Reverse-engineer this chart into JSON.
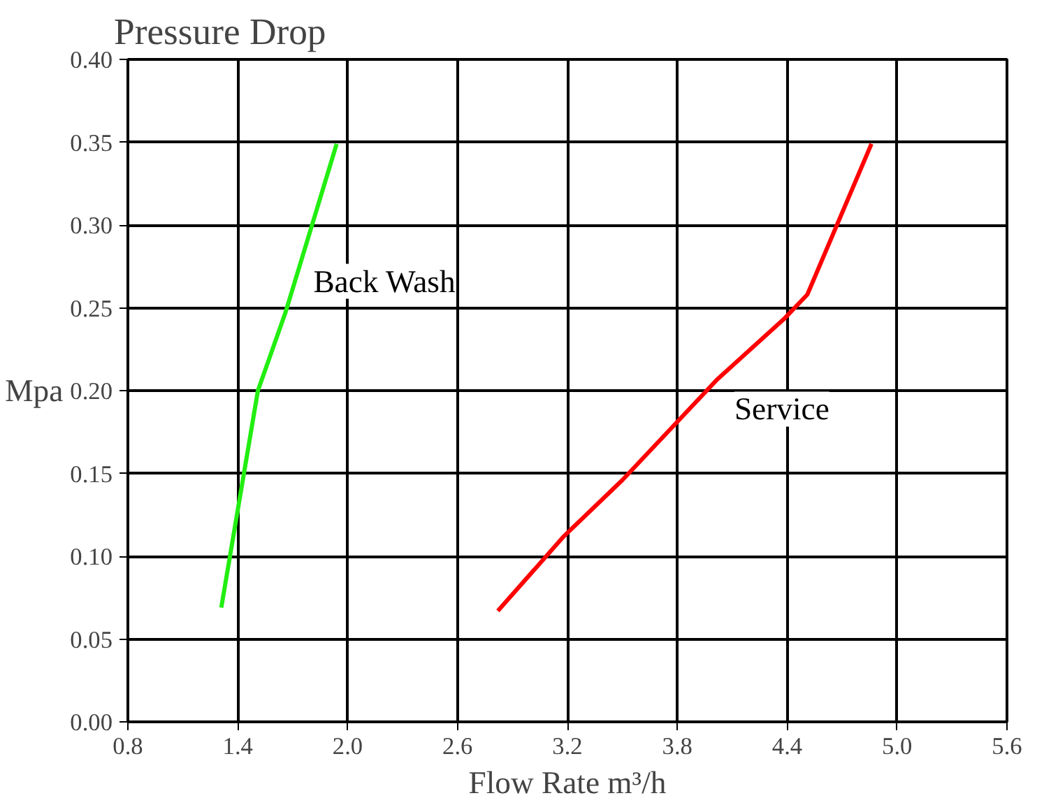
{
  "chart_data": {
    "type": "line",
    "title": "Pressure Drop",
    "ylabel": "Mpa",
    "xlabel": "Flow Rate m³/h",
    "xlim": [
      0.8,
      5.6
    ],
    "xticks": [
      {
        "value": 0.8,
        "label": "0.8"
      },
      {
        "value": 1.4,
        "label": "1.4"
      },
      {
        "value": 2.0,
        "label": "2.0"
      },
      {
        "value": 2.6,
        "label": "2.6"
      },
      {
        "value": 3.2,
        "label": "3.2"
      },
      {
        "value": 3.8,
        "label": "3.8"
      },
      {
        "value": 4.4,
        "label": "4.4"
      },
      {
        "value": 5.0,
        "label": "5.0"
      },
      {
        "value": 5.6,
        "label": "5.6"
      }
    ],
    "ylim": [
      0,
      0.4
    ],
    "yticks": [
      {
        "value": 0,
        "label": "0.00"
      },
      {
        "value": 0.05,
        "label": "0.05"
      },
      {
        "value": 0.1,
        "label": "0.10"
      },
      {
        "value": 0.15,
        "label": "0.15"
      },
      {
        "value": 0.2,
        "label": "0.20"
      },
      {
        "value": 0.25,
        "label": "0.25"
      },
      {
        "value": 0.3,
        "label": "0.30"
      },
      {
        "value": 0.35,
        "label": "0.35"
      },
      {
        "value": 0.4,
        "label": "0.40"
      }
    ],
    "grid": true,
    "marker": "none",
    "line_style": "solid",
    "series": [
      {
        "name": "Back Wash",
        "color": "#22ee11",
        "x": [
          1.31,
          1.51,
          1.66,
          1.94
        ],
        "values": [
          0.069,
          0.2,
          0.247,
          0.349
        ]
      },
      {
        "name": "Service",
        "color": "#ff0000",
        "x": [
          2.82,
          3.18,
          3.5,
          4.02,
          4.38,
          4.51,
          4.86
        ],
        "values": [
          0.067,
          0.112,
          0.146,
          0.207,
          0.243,
          0.258,
          0.349
        ]
      }
    ]
  }
}
